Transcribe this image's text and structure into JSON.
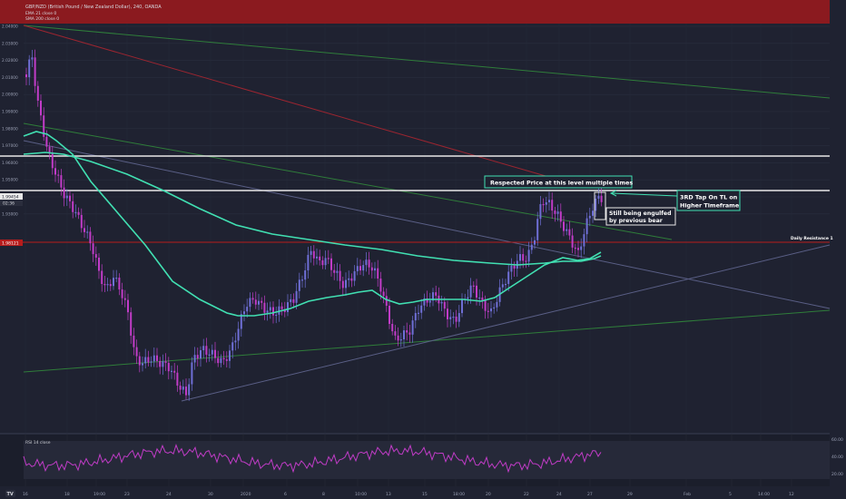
{
  "header": {
    "symbol": "GBP/NZD (British Pound / New Zealand Dollar), 240, OANDA",
    "line2": "EMA 21 close 0",
    "line3": "SMA 200 close 0"
  },
  "price_axis": {
    "ticks": [
      "2.04000",
      "2.03000",
      "2.02000",
      "2.01000",
      "2.00000",
      "1.99000",
      "1.98000",
      "1.97000",
      "1.96000",
      "1.95000",
      "1.94000",
      "1.93000"
    ],
    "current_price": "1.99454",
    "countdown": "02:36",
    "resistance_price": "1.98121"
  },
  "time_axis": {
    "labels": [
      "16",
      "18",
      "19:00",
      "23",
      "24",
      "30",
      "2020",
      "6",
      "8",
      "10:00",
      "13",
      "15",
      "18:00",
      "20",
      "22",
      "24",
      "27",
      "29",
      "Feb",
      "5",
      "14:00",
      "12"
    ]
  },
  "rsi": {
    "title": "RSI 14 close",
    "ticks": [
      "60.00",
      "40.00",
      "20.00"
    ]
  },
  "annotations": {
    "respected": "Respected Price at this level multiple times",
    "tap_line1": "3RD Tap On TL on",
    "tap_line2": "Higher Timeframe",
    "engulf_line1": "Still being engulfed",
    "engulf_line2": "by previous bear",
    "daily_resistance": "Daily Resistance 1"
  },
  "colors": {
    "background": "#1f2231",
    "candle": "#c13cc7",
    "candle_bull": "#6f6fd6",
    "ema": "#41e0b2",
    "resistance": "#b71c1c",
    "trend_green": "#2f7d3a",
    "trend_slate": "#5a5f86"
  },
  "logo_badge": "TV"
}
